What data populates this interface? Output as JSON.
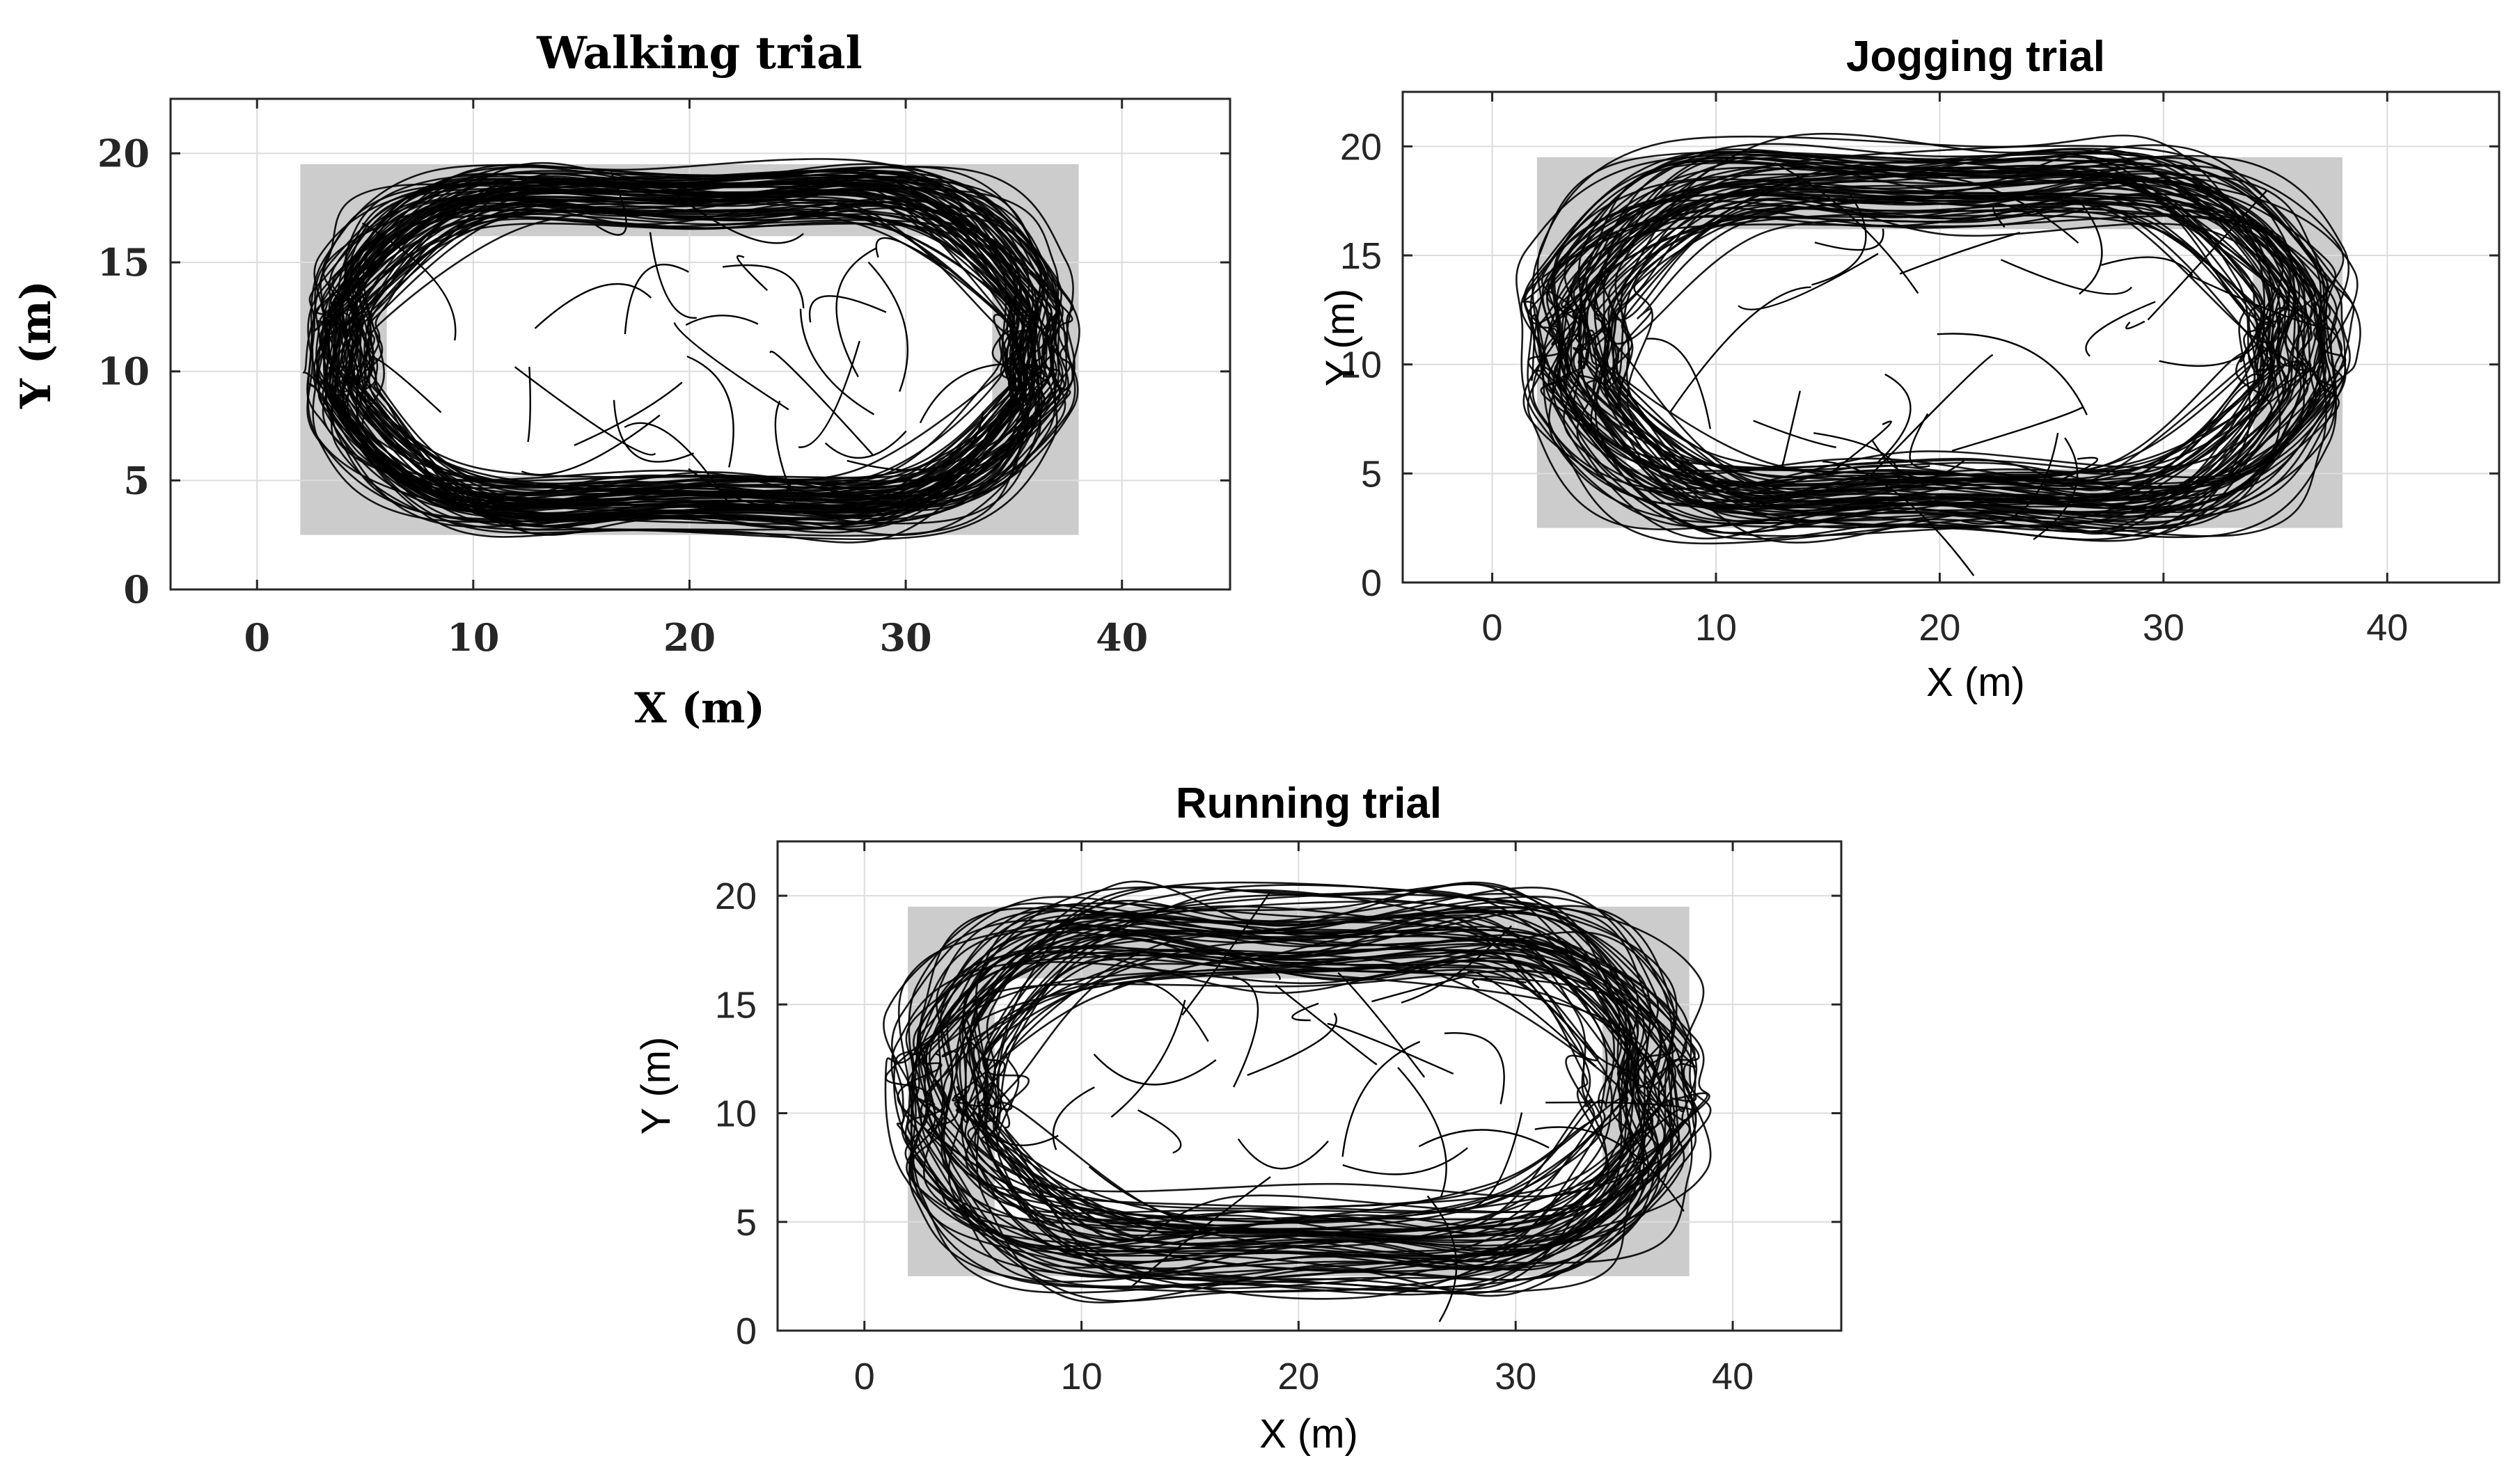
{
  "chart_data": [
    {
      "type": "line",
      "title": "Walking trial",
      "xlabel": "X (m)",
      "ylabel": "Y (m)",
      "xlim": [
        -4,
        45
      ],
      "ylim": [
        0,
        22.5
      ],
      "xticks": [
        0,
        10,
        20,
        30,
        40
      ],
      "yticks": [
        0,
        5,
        10,
        15,
        20
      ],
      "xtick_labels": [
        "0",
        "10",
        "20",
        "30",
        "40"
      ],
      "ytick_labels": [
        "0",
        "5",
        "10",
        "15",
        "20"
      ],
      "grid": true,
      "style": "serif-bold",
      "track_area": {
        "outer": [
          2,
          2.5,
          38,
          19.5
        ],
        "inner": [
          6,
          5.2,
          34,
          16.2
        ],
        "color": "#cccccc"
      },
      "series": [
        {
          "name": "Trajectories",
          "color": "#000000",
          "n_laps": 72,
          "jitter": 1.3,
          "seed": 11
        }
      ]
    },
    {
      "type": "line",
      "title": "Jogging trial",
      "xlabel": "X (m)",
      "ylabel": "Y (m)",
      "xlim": [
        -4,
        45
      ],
      "ylim": [
        0,
        22.5
      ],
      "xticks": [
        0,
        10,
        20,
        30,
        40
      ],
      "yticks": [
        0,
        5,
        10,
        15,
        20
      ],
      "xtick_labels": [
        "0",
        "10",
        "20",
        "30",
        "40"
      ],
      "ytick_labels": [
        "0",
        "5",
        "10",
        "15",
        "20"
      ],
      "grid": true,
      "style": "sans",
      "track_area": {
        "outer": [
          2,
          2.5,
          38,
          19.5
        ],
        "inner": [
          6,
          5.2,
          34,
          16.2
        ],
        "color": "#cccccc"
      },
      "series": [
        {
          "name": "Trajectories",
          "color": "#000000",
          "n_laps": 66,
          "jitter": 1.9,
          "seed": 23
        }
      ]
    },
    {
      "type": "line",
      "title": "Running trial",
      "xlabel": "X (m)",
      "ylabel": "Y (m)",
      "xlim": [
        -4,
        45
      ],
      "ylim": [
        0,
        22.5
      ],
      "xticks": [
        0,
        10,
        20,
        30,
        40
      ],
      "yticks": [
        0,
        5,
        10,
        15,
        20
      ],
      "xtick_labels": [
        "0",
        "10",
        "20",
        "30",
        "40"
      ],
      "ytick_labels": [
        "0",
        "5",
        "10",
        "15",
        "20"
      ],
      "grid": true,
      "style": "sans",
      "track_area": {
        "outer": [
          2,
          2.5,
          38,
          19.5
        ],
        "inner": [
          6,
          5.2,
          34,
          16.2
        ],
        "color": "#cccccc"
      },
      "series": [
        {
          "name": "Trajectories",
          "color": "#000000",
          "n_laps": 62,
          "jitter": 2.3,
          "seed": 37
        }
      ]
    }
  ]
}
